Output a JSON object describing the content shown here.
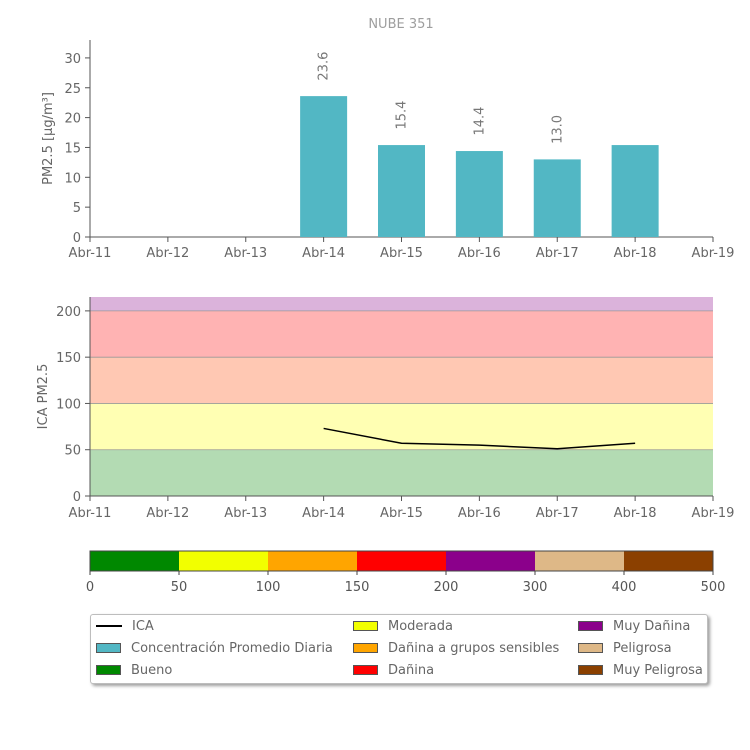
{
  "chart_data": [
    {
      "type": "bar",
      "title": "NUBE 351",
      "ylabel": "PM2.5 [μg/m³]",
      "xlabel": "",
      "ylim": [
        0,
        33
      ],
      "yticks": [
        0,
        5,
        10,
        15,
        20,
        25,
        30
      ],
      "categories": [
        "Abr-11",
        "Abr-12",
        "Abr-13",
        "Abr-14",
        "Abr-15",
        "Abr-16",
        "Abr-17",
        "Abr-18",
        "Abr-19"
      ],
      "bars": [
        {
          "category": "Abr-14",
          "value": 23.6,
          "label": "23.6"
        },
        {
          "category": "Abr-15",
          "value": 15.4,
          "label": "15.4"
        },
        {
          "category": "Abr-16",
          "value": 14.4,
          "label": "14.4"
        },
        {
          "category": "Abr-17",
          "value": 13.0,
          "label": "13.0"
        },
        {
          "category": "Abr-18",
          "value": 15.4,
          "label": ""
        }
      ],
      "bar_color": "#52b7c4"
    },
    {
      "type": "line",
      "ylabel": "ICA PM2.5",
      "xlabel": "",
      "ylim": [
        0,
        215
      ],
      "yticks": [
        0,
        50,
        100,
        150,
        200
      ],
      "categories": [
        "Abr-11",
        "Abr-12",
        "Abr-13",
        "Abr-14",
        "Abr-15",
        "Abr-16",
        "Abr-17",
        "Abr-18",
        "Abr-19"
      ],
      "bands": [
        {
          "from": 0,
          "to": 50,
          "color": "#b3dbb3"
        },
        {
          "from": 50,
          "to": 100,
          "color": "#ffffb3"
        },
        {
          "from": 100,
          "to": 150,
          "color": "#ffc8b3"
        },
        {
          "from": 150,
          "to": 200,
          "color": "#ffb3b3"
        },
        {
          "from": 200,
          "to": 215,
          "color": "#dbb3db"
        }
      ],
      "series": [
        {
          "name": "ICA",
          "color": "#000000",
          "points": [
            {
              "x": "Abr-14",
              "y": 73
            },
            {
              "x": "Abr-15",
              "y": 57
            },
            {
              "x": "Abr-16",
              "y": 55
            },
            {
              "x": "Abr-17",
              "y": 51
            },
            {
              "x": "Abr-18",
              "y": 57
            }
          ]
        }
      ]
    },
    {
      "type": "colorbar",
      "ticks": [
        0,
        50,
        100,
        150,
        200,
        300,
        400,
        500
      ],
      "segments": [
        {
          "from": 0,
          "to": 50,
          "color": "#008800"
        },
        {
          "from": 50,
          "to": 100,
          "color": "#f2ff00"
        },
        {
          "from": 100,
          "to": 150,
          "color": "#ffa500"
        },
        {
          "from": 150,
          "to": 200,
          "color": "#ff0000"
        },
        {
          "from": 200,
          "to": 300,
          "color": "#8b008b"
        },
        {
          "from": 300,
          "to": 400,
          "color": "#deb887"
        },
        {
          "from": 400,
          "to": 500,
          "color": "#8b4000"
        }
      ]
    }
  ],
  "legend": {
    "items": [
      {
        "label": "ICA",
        "kind": "line",
        "color": "#000000"
      },
      {
        "label": "Concentración Promedio Diaria",
        "kind": "patch",
        "color": "#52b7c4"
      },
      {
        "label": "Bueno",
        "kind": "patch",
        "color": "#008800"
      },
      {
        "label": "Moderada",
        "kind": "patch",
        "color": "#f2ff00"
      },
      {
        "label": "Dañina a grupos sensibles",
        "kind": "patch",
        "color": "#ffa500"
      },
      {
        "label": "Dañina",
        "kind": "patch",
        "color": "#ff0000"
      },
      {
        "label": "Muy Dañina",
        "kind": "patch",
        "color": "#8b008b"
      },
      {
        "label": "Peligrosa",
        "kind": "patch",
        "color": "#deb887"
      },
      {
        "label": "Muy Peligrosa",
        "kind": "patch",
        "color": "#8b4000"
      }
    ]
  }
}
